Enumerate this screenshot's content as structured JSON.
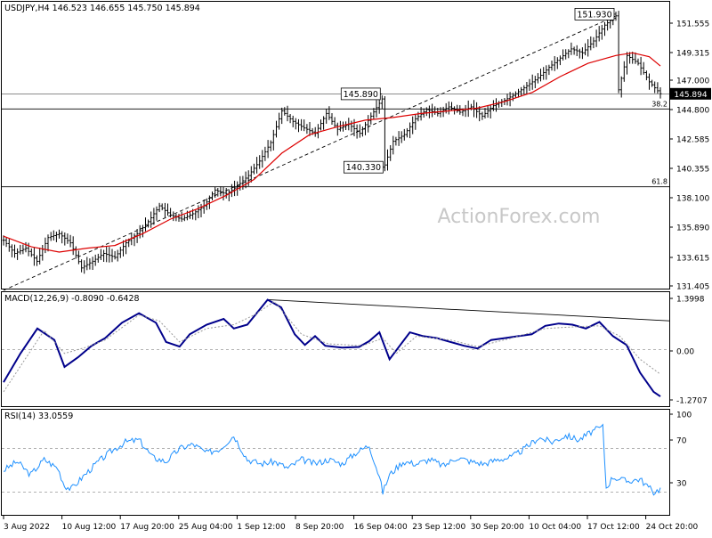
{
  "header": {
    "main_title": "USDJPY,H4  146.523 146.655 145.750 145.894",
    "macd_title": "MACD(12,26,9) -0.8090 -0.6428",
    "rsi_title": "RSI(14) 33.0559"
  },
  "watermark": "ActionForex.com",
  "colors": {
    "price": "#000000",
    "sma": "#dd0000",
    "macd": "#00008b",
    "signal": "#999999",
    "rsi": "#1e90ff",
    "grid": "#000000",
    "trendline": "#000000"
  },
  "chart_data": [
    {
      "type": "candlestick",
      "symbol": "USDJPY",
      "timeframe": "H4",
      "ohlc_last": {
        "open": 146.523,
        "high": 146.655,
        "low": 145.75,
        "close": 145.894
      },
      "yaxis_ticks": [
        "151.555",
        "149.315",
        "147.000",
        "144.800",
        "142.585",
        "140.355",
        "138.100",
        "135.890",
        "133.615",
        "131.405"
      ],
      "ylim": [
        131.2,
        152.8
      ],
      "current_price_label": "145.894",
      "annotations": [
        {
          "label": "151.930",
          "value": 151.93
        },
        {
          "label": "145.890",
          "value": 145.89
        },
        {
          "label": "140.330",
          "value": 140.33
        }
      ],
      "fib_levels": [
        {
          "label": "38.2",
          "value": 144.75
        },
        {
          "label": "61.8",
          "value": 138.85
        }
      ],
      "horizontal_lines": [
        145.89
      ],
      "moving_average": "red line",
      "close_path": [
        [
          0,
          134.8
        ],
        [
          4,
          133.8
        ],
        [
          8,
          134.2
        ],
        [
          12,
          133.2
        ],
        [
          16,
          135.0
        ],
        [
          20,
          135.3
        ],
        [
          24,
          134.6
        ],
        [
          28,
          132.7
        ],
        [
          32,
          133.2
        ],
        [
          36,
          133.8
        ],
        [
          40,
          133.5
        ],
        [
          44,
          134.6
        ],
        [
          48,
          135.3
        ],
        [
          52,
          136.2
        ],
        [
          56,
          137.4
        ],
        [
          60,
          136.7
        ],
        [
          64,
          136.4
        ],
        [
          68,
          136.8
        ],
        [
          72,
          137.4
        ],
        [
          76,
          138.6
        ],
        [
          80,
          138.3
        ],
        [
          84,
          138.9
        ],
        [
          88,
          139.7
        ],
        [
          92,
          140.8
        ],
        [
          96,
          142.2
        ],
        [
          100,
          144.6
        ],
        [
          104,
          143.8
        ],
        [
          108,
          143.3
        ],
        [
          112,
          142.9
        ],
        [
          116,
          144.4
        ],
        [
          120,
          143.2
        ],
        [
          124,
          143.6
        ],
        [
          128,
          142.9
        ],
        [
          132,
          144.2
        ],
        [
          136,
          145.5
        ],
        [
          137,
          140.5
        ],
        [
          140,
          142.3
        ],
        [
          144,
          142.8
        ],
        [
          148,
          144.0
        ],
        [
          152,
          144.7
        ],
        [
          156,
          144.4
        ],
        [
          160,
          144.9
        ],
        [
          164,
          144.5
        ],
        [
          168,
          144.9
        ],
        [
          172,
          144.2
        ],
        [
          176,
          145.0
        ],
        [
          180,
          145.4
        ],
        [
          184,
          145.9
        ],
        [
          188,
          146.5
        ],
        [
          192,
          147.1
        ],
        [
          196,
          147.9
        ],
        [
          200,
          148.6
        ],
        [
          204,
          149.3
        ],
        [
          208,
          149.0
        ],
        [
          212,
          149.9
        ],
        [
          216,
          151.1
        ],
        [
          220,
          151.8
        ],
        [
          221,
          146.2
        ],
        [
          224,
          148.8
        ],
        [
          228,
          148.2
        ],
        [
          232,
          146.8
        ],
        [
          236,
          145.9
        ]
      ],
      "ma_path": [
        [
          0,
          135.1
        ],
        [
          10,
          134.3
        ],
        [
          20,
          133.9
        ],
        [
          30,
          134.2
        ],
        [
          40,
          134.4
        ],
        [
          50,
          135.3
        ],
        [
          60,
          136.4
        ],
        [
          70,
          137.2
        ],
        [
          80,
          138.2
        ],
        [
          90,
          139.4
        ],
        [
          100,
          141.4
        ],
        [
          110,
          142.8
        ],
        [
          120,
          143.4
        ],
        [
          130,
          143.9
        ],
        [
          140,
          144.1
        ],
        [
          150,
          144.4
        ],
        [
          160,
          144.6
        ],
        [
          170,
          144.8
        ],
        [
          180,
          145.3
        ],
        [
          190,
          146.0
        ],
        [
          200,
          147.2
        ],
        [
          210,
          148.2
        ],
        [
          220,
          148.8
        ],
        [
          226,
          149.0
        ],
        [
          232,
          148.7
        ],
        [
          236,
          148.0
        ]
      ],
      "trendline": [
        [
          0,
          131.0
        ],
        [
          220,
          151.8
        ]
      ]
    },
    {
      "type": "line",
      "indicator": "MACD(12,26,9)",
      "values_last": {
        "macd": -0.809,
        "signal": -0.6428
      },
      "yaxis_ticks": [
        "1.3998",
        "0.00",
        "-1.2707"
      ],
      "ylim": [
        -1.45,
        1.45
      ],
      "series": [
        {
          "role": "macd",
          "points": [
            [
              0,
              -0.85
            ],
            [
              5,
              -0.1
            ],
            [
              10,
              0.55
            ],
            [
              15,
              0.25
            ],
            [
              18,
              -0.45
            ],
            [
              22,
              -0.2
            ],
            [
              26,
              0.1
            ],
            [
              30,
              0.3
            ],
            [
              35,
              0.7
            ],
            [
              40,
              0.95
            ],
            [
              45,
              0.7
            ],
            [
              48,
              0.2
            ],
            [
              52,
              0.08
            ],
            [
              55,
              0.4
            ],
            [
              60,
              0.65
            ],
            [
              65,
              0.8
            ],
            [
              68,
              0.55
            ],
            [
              72,
              0.65
            ],
            [
              78,
              1.3
            ],
            [
              82,
              1.1
            ],
            [
              86,
              0.4
            ],
            [
              89,
              0.12
            ],
            [
              92,
              0.35
            ],
            [
              95,
              0.1
            ],
            [
              100,
              0.05
            ],
            [
              105,
              0.07
            ],
            [
              108,
              0.22
            ],
            [
              111,
              0.45
            ],
            [
              114,
              -0.25
            ],
            [
              117,
              0.1
            ],
            [
              120,
              0.45
            ],
            [
              124,
              0.35
            ],
            [
              128,
              0.3
            ],
            [
              132,
              0.2
            ],
            [
              136,
              0.1
            ],
            [
              140,
              0.03
            ],
            [
              144,
              0.25
            ],
            [
              148,
              0.3
            ],
            [
              152,
              0.35
            ],
            [
              156,
              0.4
            ],
            [
              160,
              0.62
            ],
            [
              164,
              0.68
            ],
            [
              168,
              0.65
            ],
            [
              172,
              0.55
            ],
            [
              176,
              0.72
            ],
            [
              180,
              0.35
            ],
            [
              184,
              0.12
            ],
            [
              188,
              -0.6
            ],
            [
              192,
              -1.1
            ],
            [
              194,
              -1.22
            ]
          ]
        },
        {
          "role": "signal",
          "points": [
            [
              0,
              -1.1
            ],
            [
              6,
              -0.3
            ],
            [
              12,
              0.5
            ],
            [
              18,
              -0.1
            ],
            [
              24,
              0.05
            ],
            [
              30,
              0.25
            ],
            [
              40,
              0.9
            ],
            [
              46,
              0.75
            ],
            [
              52,
              0.2
            ],
            [
              60,
              0.55
            ],
            [
              68,
              0.65
            ],
            [
              74,
              0.9
            ],
            [
              80,
              1.25
            ],
            [
              88,
              0.4
            ],
            [
              96,
              0.15
            ],
            [
              106,
              0.1
            ],
            [
              112,
              0.3
            ],
            [
              116,
              -0.1
            ],
            [
              122,
              0.35
            ],
            [
              132,
              0.25
            ],
            [
              140,
              0.08
            ],
            [
              150,
              0.3
            ],
            [
              160,
              0.55
            ],
            [
              170,
              0.6
            ],
            [
              176,
              0.62
            ],
            [
              182,
              0.35
            ],
            [
              188,
              -0.25
            ],
            [
              194,
              -0.64
            ]
          ]
        }
      ],
      "trendline": [
        [
          78,
          1.3
        ],
        [
          194,
          0.75
        ]
      ]
    },
    {
      "type": "line",
      "indicator": "RSI(14)",
      "value_last": 33.0559,
      "yaxis_ticks": [
        "100",
        "70",
        "30"
      ],
      "ylim": [
        10,
        104
      ],
      "levels": [
        70,
        30
      ],
      "series": [
        {
          "role": "rsi",
          "points": [
            [
              0,
              50
            ],
            [
              4,
              58
            ],
            [
              8,
              46
            ],
            [
              12,
              60
            ],
            [
              16,
              52
            ],
            [
              18,
              36
            ],
            [
              20,
              33
            ],
            [
              24,
              46
            ],
            [
              28,
              58
            ],
            [
              32,
              68
            ],
            [
              36,
              76
            ],
            [
              40,
              78
            ],
            [
              44,
              62
            ],
            [
              48,
              58
            ],
            [
              52,
              70
            ],
            [
              56,
              74
            ],
            [
              60,
              66
            ],
            [
              64,
              70
            ],
            [
              68,
              82
            ],
            [
              72,
              60
            ],
            [
              76,
              56
            ],
            [
              80,
              58
            ],
            [
              84,
              52
            ],
            [
              88,
              60
            ],
            [
              92,
              56
            ],
            [
              96,
              60
            ],
            [
              100,
              56
            ],
            [
              104,
              66
            ],
            [
              108,
              73
            ],
            [
              111,
              44
            ],
            [
              112,
              30
            ],
            [
              114,
              46
            ],
            [
              118,
              58
            ],
            [
              122,
              56
            ],
            [
              126,
              60
            ],
            [
              130,
              54
            ],
            [
              134,
              62
            ],
            [
              138,
              58
            ],
            [
              142,
              56
            ],
            [
              146,
              60
            ],
            [
              150,
              62
            ],
            [
              154,
              70
            ],
            [
              158,
              80
            ],
            [
              162,
              76
            ],
            [
              166,
              82
            ],
            [
              170,
              78
            ],
            [
              174,
              86
            ],
            [
              177,
              90
            ],
            [
              178,
              34
            ],
            [
              180,
              44
            ],
            [
              184,
              40
            ],
            [
              188,
              42
            ],
            [
              192,
              30
            ],
            [
              194,
              33
            ]
          ]
        }
      ]
    }
  ],
  "xaxis": {
    "labels": [
      "3 Aug 2022",
      "10 Aug 12:00",
      "17 Aug 20:00",
      "25 Aug 04:00",
      "1 Sep 12:00",
      "8 Sep 20:00",
      "16 Sep 04:00",
      "23 Sep 12:00",
      "30 Sep 20:00",
      "10 Oct 04:00",
      "17 Oct 12:00",
      "24 Oct 20:00"
    ]
  }
}
